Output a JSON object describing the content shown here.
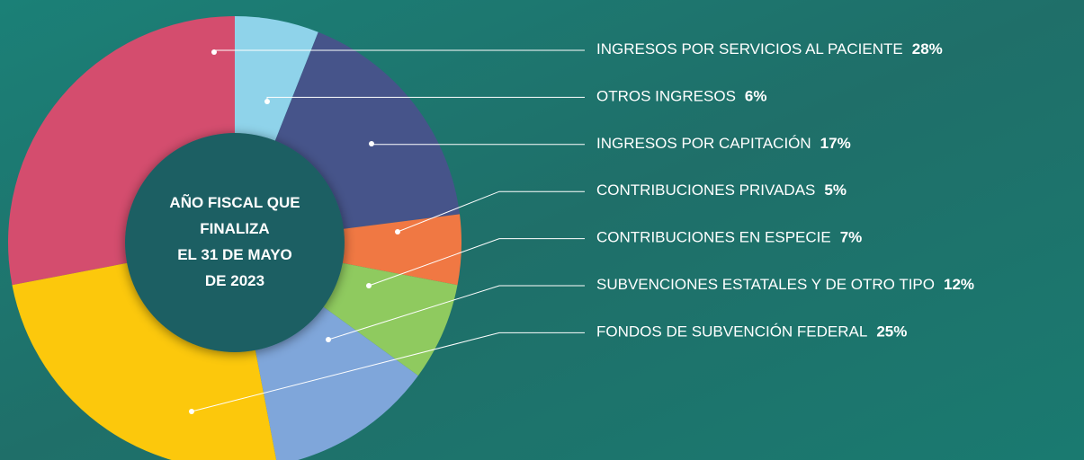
{
  "chart_data": {
    "type": "pie",
    "center_label": [
      "AÑO FISCAL QUE",
      "FINALIZA",
      "EL 31 DE MAYO",
      "DE 2023"
    ],
    "categories": [
      "INGRESOS POR SERVICIOS AL PACIENTE",
      "OTROS INGRESOS",
      "INGRESOS POR CAPITACIÓN",
      "CONTRIBUCIONES PRIVADAS",
      "CONTRIBUCIONES EN ESPECIE",
      "SUBVENCIONES ESTATALES Y DE OTRO TIPO",
      "FONDOS DE SUBVENCIÓN FEDERAL"
    ],
    "values": [
      28,
      6,
      17,
      5,
      7,
      12,
      25
    ],
    "value_labels": [
      "28%",
      "6%",
      "17%",
      "5%",
      "7%",
      "12%",
      "25%"
    ],
    "colors": [
      "#d44d6e",
      "#8fd3ea",
      "#46548a",
      "#f07843",
      "#8fca5f",
      "#7fa6da",
      "#fcc80c"
    ]
  }
}
